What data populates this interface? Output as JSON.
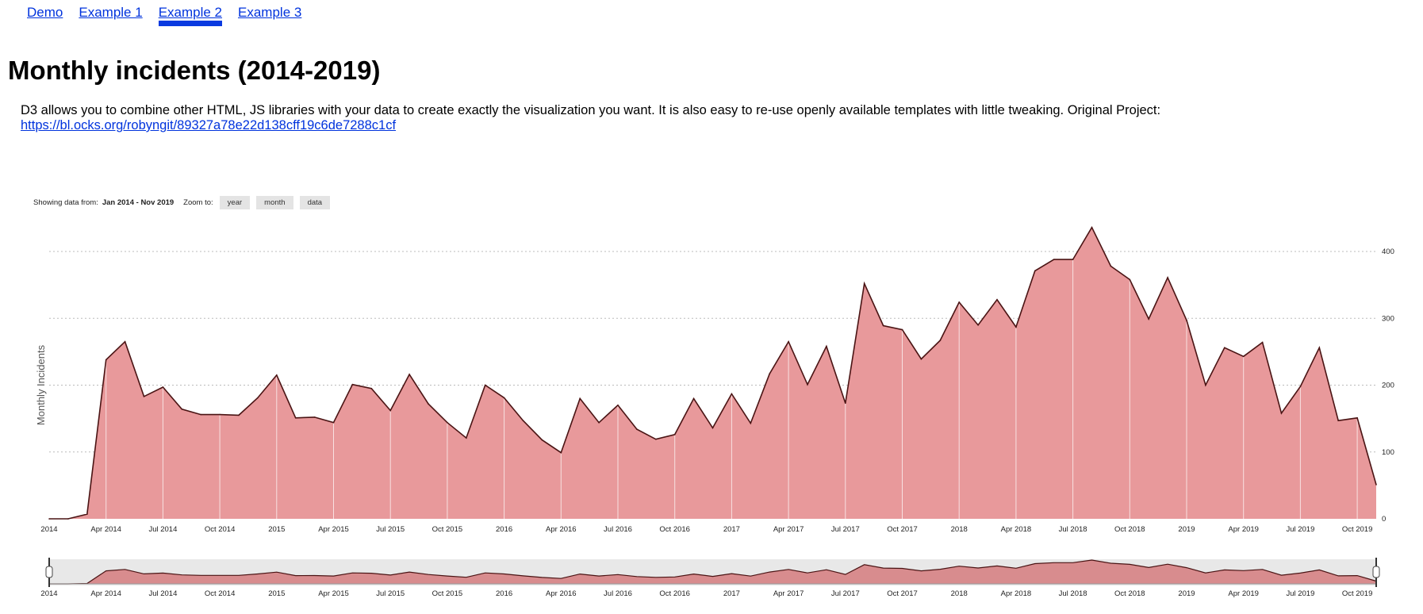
{
  "nav": {
    "links": [
      {
        "label": "Demo"
      },
      {
        "label": "Example 1"
      },
      {
        "label": "Example 2",
        "active": true
      },
      {
        "label": "Example 3"
      }
    ]
  },
  "page_title": "Monthly incidents (2014-2019)",
  "description": {
    "text": "D3 allows you to combine other HTML, JS libraries with your data to create exactly the visualization you want. It is also easy to re-use openly available templates with little tweaking. Original Project:",
    "link": "https://bl.ocks.org/robyngit/89327a78e22d138cff19c6de7288c1cf"
  },
  "controls": {
    "showing_label": "Showing data from:",
    "range": "Jan 2014 - Nov 2019",
    "zoom_label": "Zoom to:",
    "buttons": [
      "year",
      "month",
      "data"
    ]
  },
  "colors": {
    "area_fill": "#e8999b",
    "line": "#4a1414",
    "context_fill": "#d88c8e",
    "brush": "#e8e8e8",
    "grid": "#bbbbbb"
  },
  "chart_data": {
    "type": "area",
    "ylabel": "Monthly Incidents",
    "xlabel": "",
    "ylim": [
      0,
      400
    ],
    "yticks": [
      0,
      100,
      200,
      300,
      400
    ],
    "x_range": [
      "2014-01",
      "2019-11"
    ],
    "x_ticks": [
      "2014",
      "Apr 2014",
      "Jul 2014",
      "Oct 2014",
      "2015",
      "Apr 2015",
      "Jul 2015",
      "Oct 2015",
      "2016",
      "Apr 2016",
      "Jul 2016",
      "Oct 2016",
      "2017",
      "Apr 2017",
      "Jul 2017",
      "Oct 2017",
      "2018",
      "Apr 2018",
      "Jul 2018",
      "Oct 2018",
      "2019",
      "Apr 2019",
      "Jul 2019",
      "Oct 2019"
    ],
    "grid": true,
    "context_brush": true,
    "series": [
      {
        "x": [
          "2014-01",
          "2014-02",
          "2014-03",
          "2014-04",
          "2014-05",
          "2014-06",
          "2014-07",
          "2014-08",
          "2014-09",
          "2014-10",
          "2014-11",
          "2014-12",
          "2015-01",
          "2015-02",
          "2015-03",
          "2015-04",
          "2015-05",
          "2015-06",
          "2015-07",
          "2015-08",
          "2015-09",
          "2015-10",
          "2015-11",
          "2015-12",
          "2016-01",
          "2016-02",
          "2016-03",
          "2016-04",
          "2016-05",
          "2016-06",
          "2016-07",
          "2016-08",
          "2016-09",
          "2016-10",
          "2016-11",
          "2016-12",
          "2017-01",
          "2017-02",
          "2017-03",
          "2017-04",
          "2017-05",
          "2017-06",
          "2017-07",
          "2017-08",
          "2017-09",
          "2017-10",
          "2017-11",
          "2017-12",
          "2018-01",
          "2018-02",
          "2018-03",
          "2018-04",
          "2018-05",
          "2018-06",
          "2018-07",
          "2018-08",
          "2018-09",
          "2018-10",
          "2018-11",
          "2018-12",
          "2019-01",
          "2019-02",
          "2019-03",
          "2019-04",
          "2019-05",
          "2019-06",
          "2019-07",
          "2019-08",
          "2019-09",
          "2019-10",
          "2019-11"
        ],
        "values": [
          0,
          0,
          7,
          238,
          265,
          183,
          197,
          164,
          156,
          156,
          155,
          181,
          215,
          151,
          152,
          144,
          201,
          195,
          162,
          216,
          172,
          144,
          121,
          200,
          181,
          147,
          118,
          99,
          180,
          144,
          170,
          134,
          119,
          126,
          180,
          136,
          187,
          143,
          217,
          265,
          201,
          258,
          173,
          352,
          289,
          283,
          239,
          267,
          324,
          290,
          328,
          287,
          371,
          388,
          388,
          436,
          378,
          358,
          299,
          361,
          297,
          200,
          256,
          243,
          264,
          158,
          198,
          256,
          147,
          151,
          51
        ]
      }
    ]
  }
}
